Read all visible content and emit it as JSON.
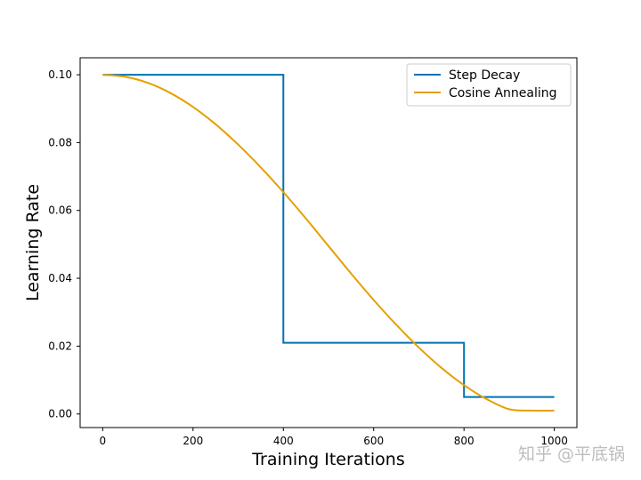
{
  "chart_data": {
    "type": "line",
    "xlabel": "Training Iterations",
    "ylabel": "Learning Rate",
    "xlim": [
      -50,
      1050
    ],
    "ylim": [
      -0.004,
      0.105
    ],
    "xticks": [
      0,
      200,
      400,
      600,
      800,
      1000
    ],
    "xtick_labels": [
      "0",
      "200",
      "400",
      "600",
      "800",
      "1000"
    ],
    "yticks": [
      0.0,
      0.02,
      0.04,
      0.06,
      0.08,
      0.1
    ],
    "ytick_labels": [
      "0.00",
      "0.02",
      "0.04",
      "0.06",
      "0.08",
      "0.10"
    ],
    "grid": false,
    "legend_position": "top-right",
    "series": [
      {
        "name": "Step Decay",
        "color": "#0072B2",
        "x": [
          0,
          400,
          400,
          800,
          800,
          1000
        ],
        "y": [
          0.1,
          0.1,
          0.021,
          0.021,
          0.005,
          0.005
        ]
      },
      {
        "name": "Cosine Annealing",
        "color": "#E69F00",
        "x": [
          0,
          50,
          100,
          150,
          200,
          250,
          300,
          350,
          400,
          450,
          500,
          550,
          600,
          650,
          700,
          750,
          800,
          850,
          900,
          950,
          1000
        ],
        "y": [
          0.1,
          0.0994,
          0.0976,
          0.0946,
          0.0905,
          0.0854,
          0.0794,
          0.0727,
          0.0654,
          0.0576,
          0.0495,
          0.0414,
          0.0336,
          0.0263,
          0.0196,
          0.0136,
          0.0085,
          0.0044,
          0.0014,
          0.001,
          0.001
        ]
      }
    ]
  },
  "watermark": "知乎 @平底锅"
}
